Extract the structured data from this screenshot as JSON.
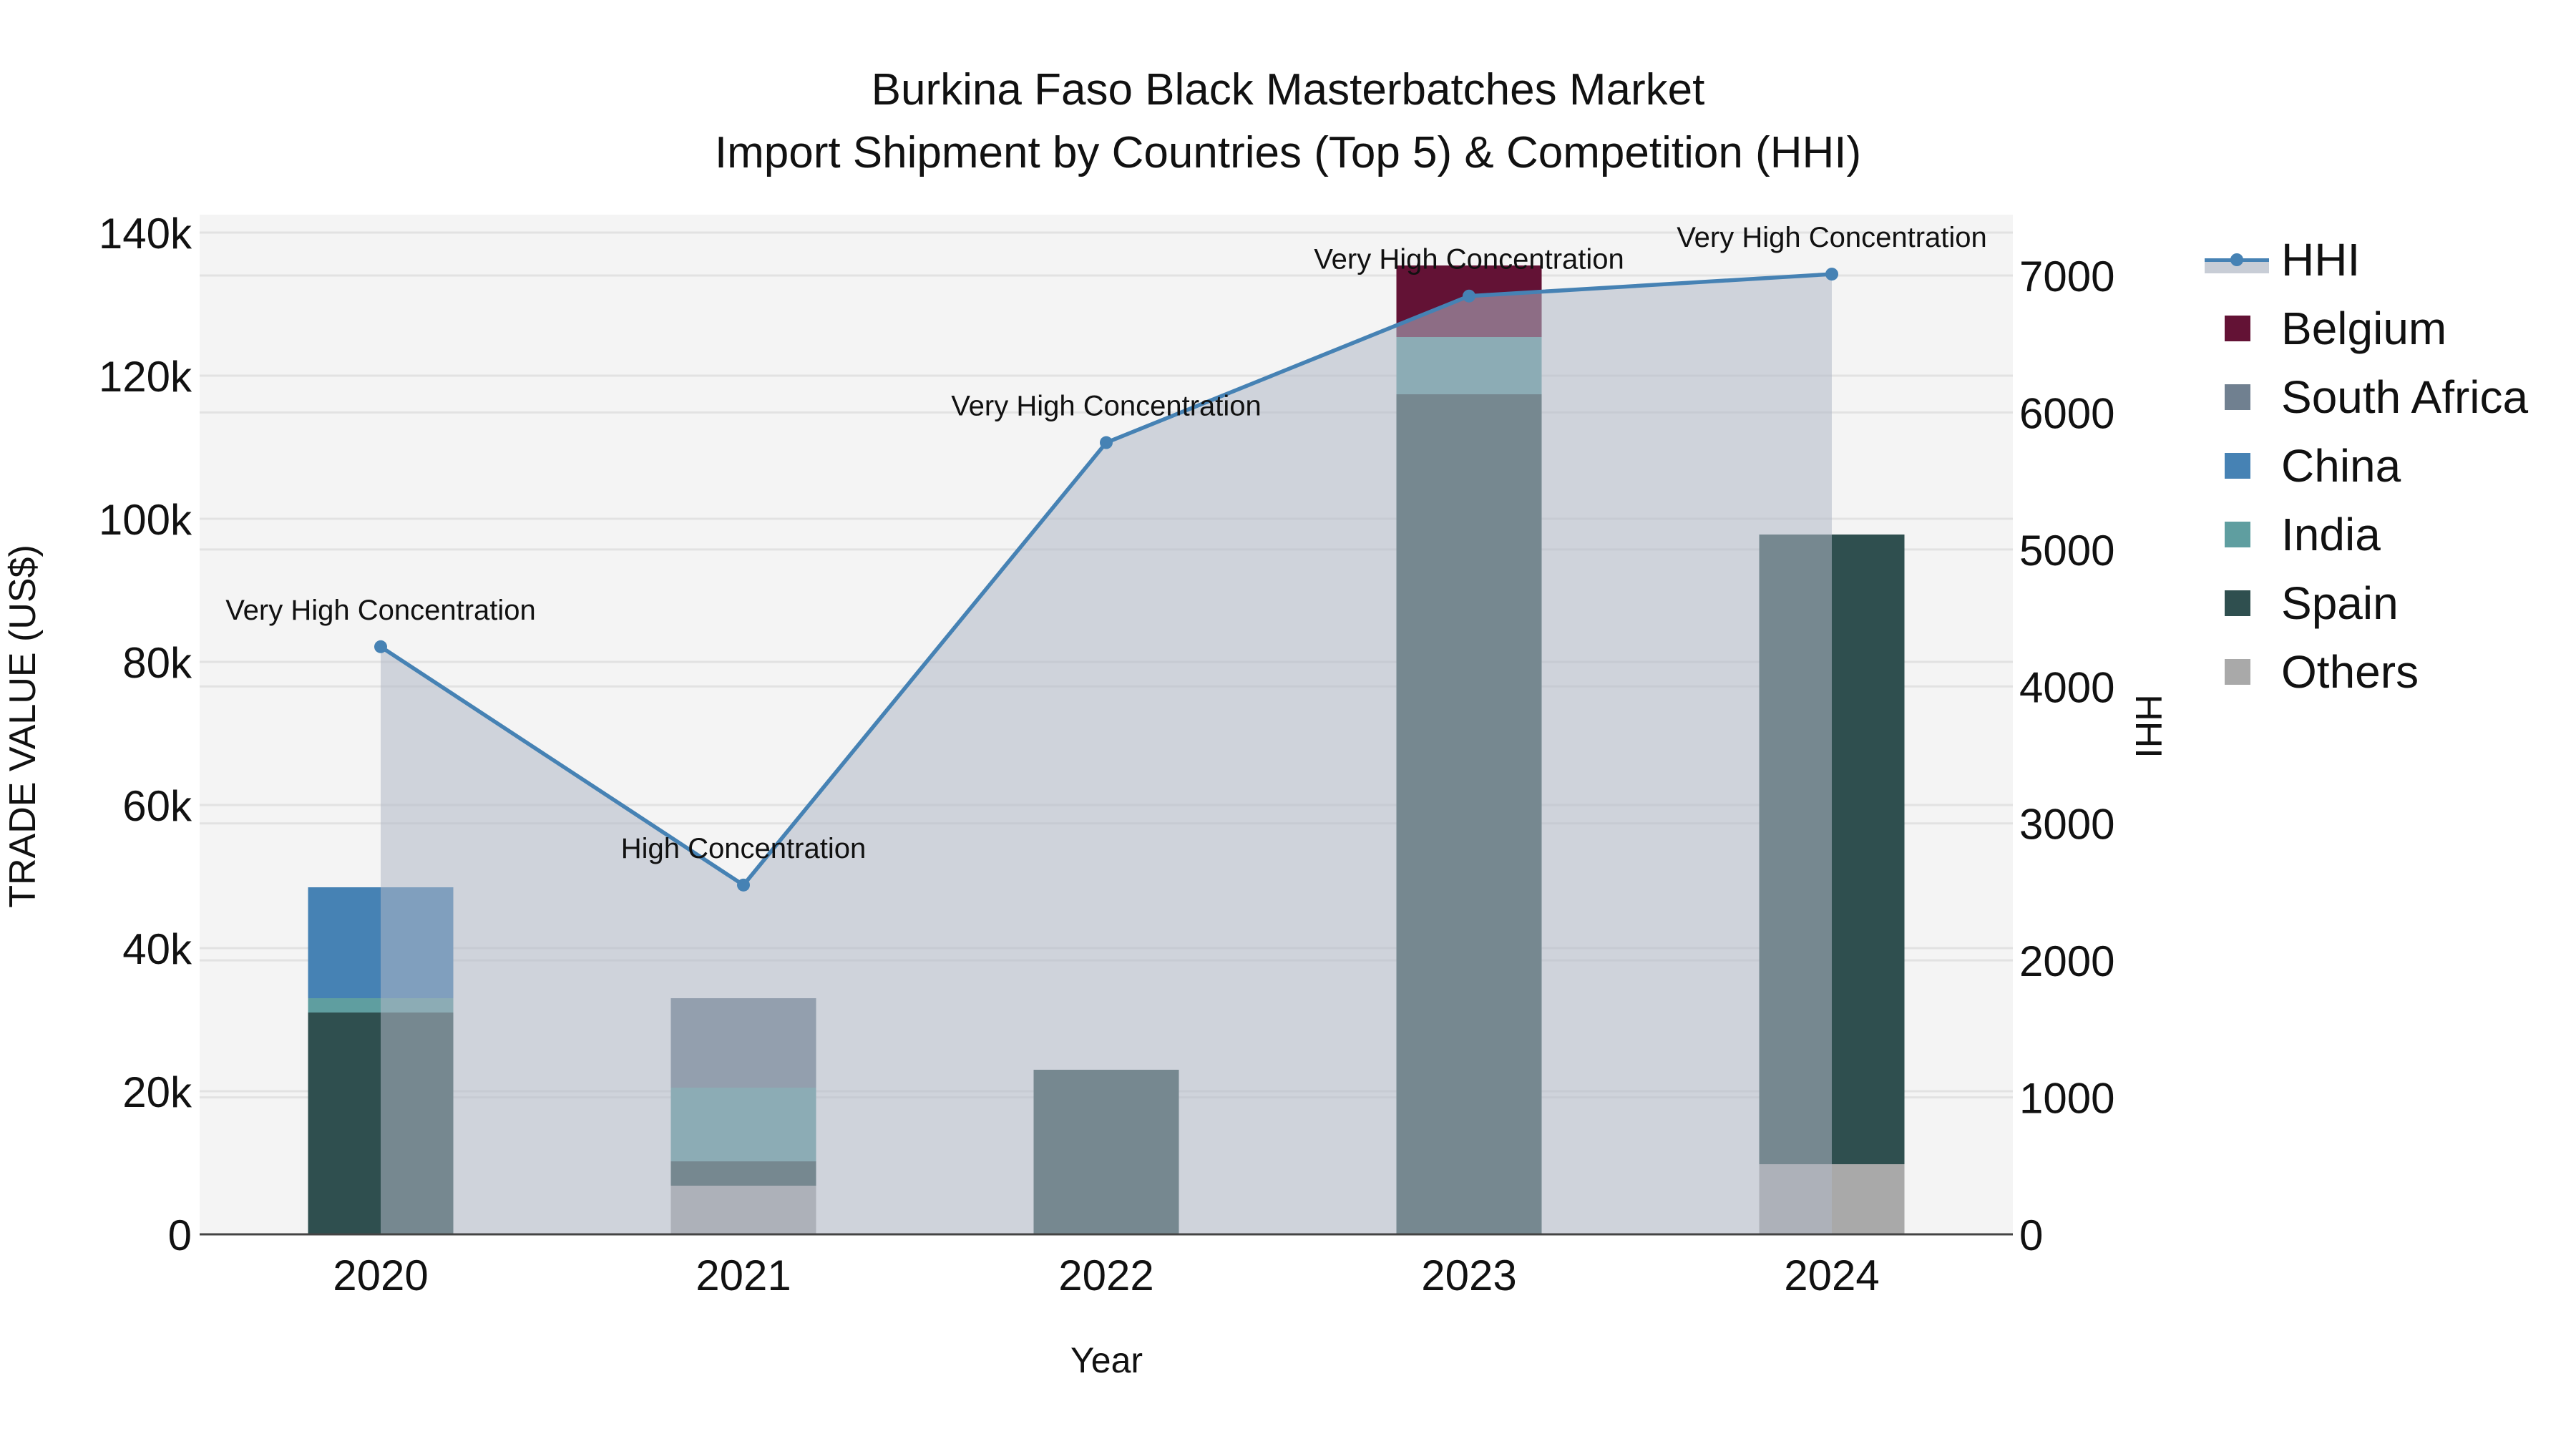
{
  "title": {
    "line1": "Burkina Faso Black Masterbatches Market",
    "line2": "Import Shipment by Countries (Top 5) & Competition (HHI)"
  },
  "axes": {
    "x_title": "Year",
    "y_left_title": "TRADE VALUE (US$)",
    "y_right_title": "HHI"
  },
  "legend": {
    "items": [
      {
        "label": "HHI",
        "type": "line",
        "color": "#4682B4"
      },
      {
        "label": "Belgium",
        "type": "bar",
        "color": "#631235"
      },
      {
        "label": "South Africa",
        "type": "bar",
        "color": "#708090"
      },
      {
        "label": "China",
        "type": "bar",
        "color": "#4682B4"
      },
      {
        "label": "India",
        "type": "bar",
        "color": "#5F9EA0"
      },
      {
        "label": "Spain",
        "type": "bar",
        "color": "#2F4F4F"
      },
      {
        "label": "Others",
        "type": "bar",
        "color": "#A9A9A9"
      }
    ]
  },
  "chart_data": {
    "type": "bar",
    "stacked": true,
    "title": "Burkina Faso Black Masterbatches Market — Import Shipment by Countries (Top 5) & Competition (HHI)",
    "xlabel": "Year",
    "ylabel": "TRADE VALUE (US$)",
    "y2label": "HHI",
    "categories": [
      "2020",
      "2021",
      "2022",
      "2023",
      "2024"
    ],
    "ylim": [
      0,
      142500
    ],
    "y_ticks": [
      0,
      20000,
      40000,
      60000,
      80000,
      100000,
      120000,
      140000
    ],
    "y_tick_labels": [
      "0",
      "20k",
      "40k",
      "60k",
      "80k",
      "100k",
      "120k",
      "140k"
    ],
    "y2lim": [
      0,
      7440
    ],
    "y2_ticks": [
      0,
      1000,
      2000,
      3000,
      4000,
      5000,
      6000,
      7000
    ],
    "y2_tick_labels": [
      "0",
      "1000",
      "2000",
      "3000",
      "4000",
      "5000",
      "6000",
      "7000"
    ],
    "grid": true,
    "legend_position": "right",
    "series": [
      {
        "name": "Others",
        "color": "#A9A9A9",
        "values": [
          0,
          6800,
          0,
          0,
          9800
        ]
      },
      {
        "name": "Spain",
        "color": "#2F4F4F",
        "values": [
          31000,
          3400,
          23000,
          117400,
          88000
        ]
      },
      {
        "name": "India",
        "color": "#5F9EA0",
        "values": [
          2000,
          10300,
          0,
          8000,
          0
        ]
      },
      {
        "name": "China",
        "color": "#4682B4",
        "values": [
          15500,
          0,
          0,
          0,
          0
        ]
      },
      {
        "name": "South Africa",
        "color": "#708090",
        "values": [
          0,
          12500,
          0,
          0,
          0
        ]
      },
      {
        "name": "Belgium",
        "color": "#631235",
        "values": [
          0,
          0,
          0,
          10000,
          0
        ]
      }
    ],
    "line_series": {
      "name": "HHI",
      "axis": "right",
      "color": "#4682B4",
      "fill": "tozeroy",
      "values": [
        4290,
        2550,
        5780,
        6850,
        7010
      ],
      "annotations": [
        "Very High Concentration",
        "High Concentration",
        "Very High Concentration",
        "Very High Concentration",
        "Very High Concentration"
      ]
    }
  }
}
